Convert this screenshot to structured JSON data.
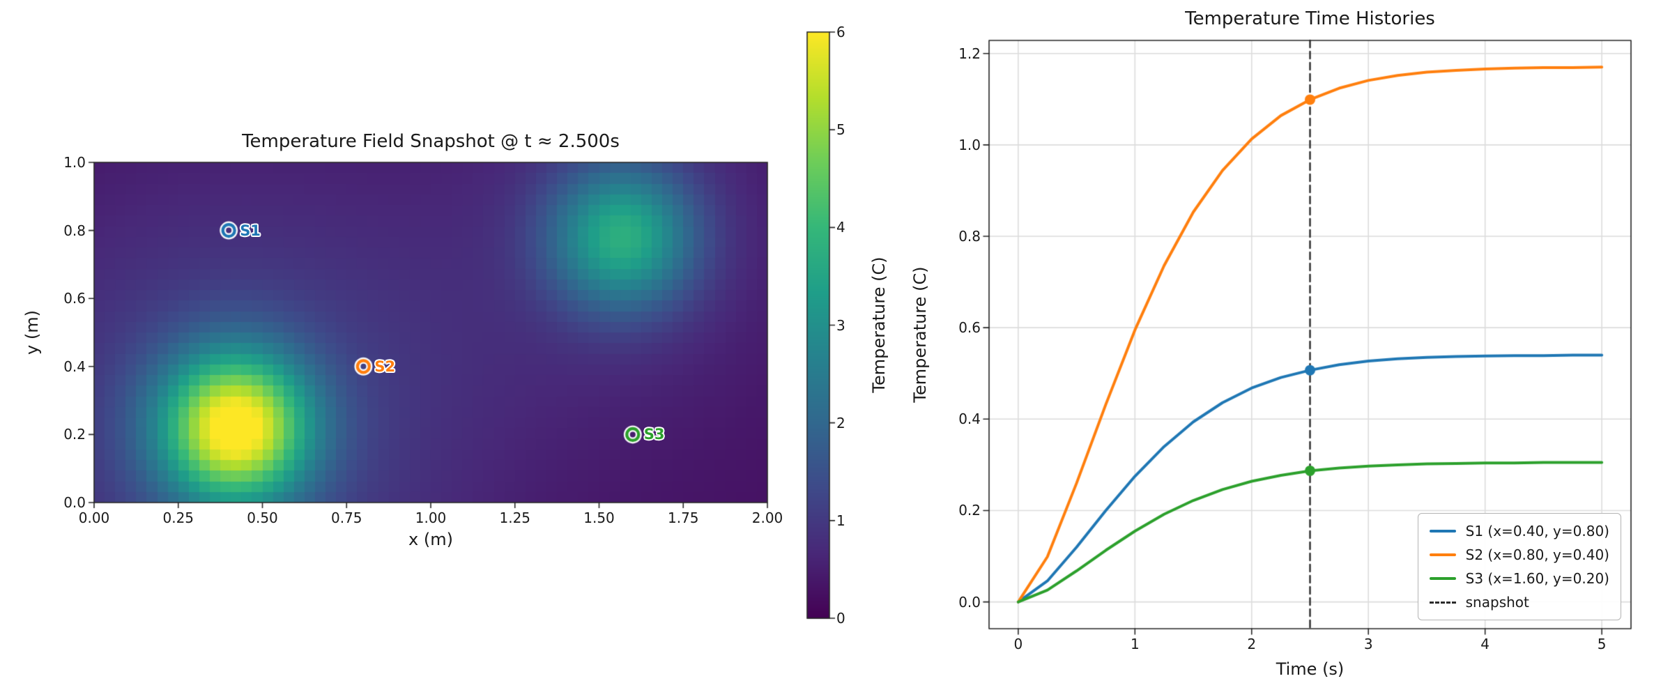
{
  "chart_data": [
    {
      "type": "heatmap",
      "title": "Temperature Field Snapshot @ t ≈ 2.500s",
      "xlabel": "x (m)",
      "ylabel": "y (m)",
      "xlim": [
        0,
        2
      ],
      "ylim": [
        0,
        1
      ],
      "vmin": 0,
      "vmax": 6,
      "colormap": "viridis",
      "xticks": [
        {
          "v": 0.0,
          "label": "0.00"
        },
        {
          "v": 0.25,
          "label": "0.25"
        },
        {
          "v": 0.5,
          "label": "0.50"
        },
        {
          "v": 0.75,
          "label": "0.75"
        },
        {
          "v": 1.0,
          "label": "1.00"
        },
        {
          "v": 1.25,
          "label": "1.25"
        },
        {
          "v": 1.5,
          "label": "1.50"
        },
        {
          "v": 1.75,
          "label": "1.75"
        },
        {
          "v": 2.0,
          "label": "2.00"
        }
      ],
      "yticks": [
        {
          "v": 0.0,
          "label": "0.0"
        },
        {
          "v": 0.2,
          "label": "0.2"
        },
        {
          "v": 0.4,
          "label": "0.4"
        },
        {
          "v": 0.6,
          "label": "0.6"
        },
        {
          "v": 0.8,
          "label": "0.8"
        },
        {
          "v": 1.0,
          "label": "1.0"
        }
      ],
      "colorbar": {
        "label": "Temperature (C)",
        "ticks": [
          {
            "v": 0,
            "label": "0"
          },
          {
            "v": 1,
            "label": "1"
          },
          {
            "v": 2,
            "label": "2"
          },
          {
            "v": 3,
            "label": "3"
          },
          {
            "v": 4,
            "label": "4"
          },
          {
            "v": 5,
            "label": "5"
          },
          {
            "v": 6,
            "label": "6"
          }
        ]
      },
      "background_level": 0.25,
      "hotspots": [
        {
          "x": 0.42,
          "y": 0.22,
          "peak": 5.2,
          "sigma": 0.155,
          "halo": 1.05,
          "halo_sigma": 0.5
        },
        {
          "x": 1.57,
          "y": 0.78,
          "peak": 3.0,
          "sigma": 0.15,
          "halo": 0.5,
          "halo_sigma": 0.4
        }
      ],
      "sensors": [
        {
          "id": "S1",
          "x": 0.4,
          "y": 0.8,
          "color": "#1f77b4"
        },
        {
          "id": "S2",
          "x": 0.8,
          "y": 0.4,
          "color": "#ff7f0e"
        },
        {
          "id": "S3",
          "x": 1.6,
          "y": 0.2,
          "color": "#2ca02c"
        }
      ]
    },
    {
      "type": "line",
      "title": "Temperature Time Histories",
      "xlabel": "Time (s)",
      "ylabel": "Temperature (C)",
      "xlim": [
        -0.25,
        5.25
      ],
      "ylim": [
        -0.0585,
        1.2285
      ],
      "grid": true,
      "legend_position": "lower right",
      "xticks": [
        {
          "v": 0,
          "label": "0"
        },
        {
          "v": 1,
          "label": "1"
        },
        {
          "v": 2,
          "label": "2"
        },
        {
          "v": 3,
          "label": "3"
        },
        {
          "v": 4,
          "label": "4"
        },
        {
          "v": 5,
          "label": "5"
        }
      ],
      "yticks": [
        {
          "v": 0.0,
          "label": "0.0"
        },
        {
          "v": 0.2,
          "label": "0.2"
        },
        {
          "v": 0.4,
          "label": "0.4"
        },
        {
          "v": 0.6,
          "label": "0.6"
        },
        {
          "v": 0.8,
          "label": "0.8"
        },
        {
          "v": 1.0,
          "label": "1.0"
        },
        {
          "v": 1.2,
          "label": "1.2"
        }
      ],
      "x": [
        0,
        0.25,
        0.5,
        0.75,
        1,
        1.25,
        1.5,
        1.75,
        2,
        2.25,
        2.5,
        2.75,
        3,
        3.25,
        3.5,
        3.75,
        4,
        4.25,
        4.5,
        4.75,
        5
      ],
      "series": [
        {
          "name": "S1",
          "legend": "S1 (x=0.40, y=0.80)",
          "color": "#1f77b4",
          "values": [
            0,
            0.046,
            0.12,
            0.2,
            0.275,
            0.34,
            0.394,
            0.436,
            0.468,
            0.491,
            0.507,
            0.519,
            0.527,
            0.532,
            0.535,
            0.537,
            0.538,
            0.539,
            0.539,
            0.54,
            0.54
          ]
        },
        {
          "name": "S2",
          "legend": "S2 (x=0.80, y=0.40)",
          "color": "#ff7f0e",
          "values": [
            0,
            0.099,
            0.26,
            0.432,
            0.595,
            0.736,
            0.853,
            0.944,
            1.013,
            1.064,
            1.099,
            1.124,
            1.141,
            1.152,
            1.159,
            1.163,
            1.166,
            1.168,
            1.169,
            1.169,
            1.17
          ]
        },
        {
          "name": "S3",
          "legend": "S3 (x=1.60, y=0.20)",
          "color": "#2ca02c",
          "values": [
            0,
            0.026,
            0.068,
            0.113,
            0.155,
            0.192,
            0.222,
            0.246,
            0.264,
            0.277,
            0.287,
            0.293,
            0.297,
            0.3,
            0.302,
            0.303,
            0.304,
            0.304,
            0.305,
            0.305,
            0.305
          ]
        }
      ],
      "snapshot": {
        "label": "snapshot",
        "time": 2.5,
        "color": "#2b2b2b"
      }
    }
  ]
}
